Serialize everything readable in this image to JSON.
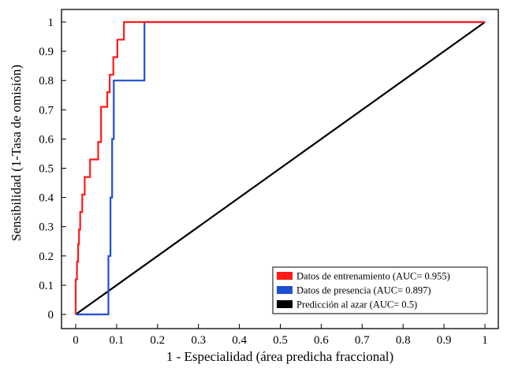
{
  "chart_data": {
    "type": "line",
    "title": "",
    "xlabel": "1 - Especialidad (área predicha fraccional)",
    "ylabel": "Sensibilidad (1-Tasa de omisión)",
    "xlim": [
      0,
      1
    ],
    "ylim": [
      0,
      1
    ],
    "xticks": [
      "0",
      "0.1",
      "0.2",
      "0.3",
      "0.4",
      "0.5",
      "0.6",
      "0.7",
      "0.8",
      "0.9",
      "1"
    ],
    "yticks": [
      "0",
      "0.1",
      "0.2",
      "0.3",
      "0.4",
      "0.5",
      "0.6",
      "0.7",
      "0.8",
      "0.9",
      "1"
    ],
    "grid": false,
    "legend_position": "bottom-right",
    "series": [
      {
        "name": "Datos de entrenamiento (AUC= 0.955)",
        "color": "#ff1a1a",
        "x": [
          0,
          0,
          0.003,
          0.003,
          0.006,
          0.006,
          0.008,
          0.008,
          0.011,
          0.011,
          0.016,
          0.016,
          0.022,
          0.022,
          0.035,
          0.035,
          0.055,
          0.055,
          0.062,
          0.062,
          0.077,
          0.077,
          0.083,
          0.083,
          0.092,
          0.092,
          0.102,
          0.102,
          0.118,
          0.118,
          1
        ],
        "y": [
          0,
          0.12,
          0.12,
          0.18,
          0.18,
          0.24,
          0.24,
          0.29,
          0.29,
          0.35,
          0.35,
          0.41,
          0.41,
          0.47,
          0.47,
          0.53,
          0.53,
          0.59,
          0.59,
          0.71,
          0.71,
          0.76,
          0.76,
          0.82,
          0.82,
          0.88,
          0.88,
          0.94,
          0.94,
          1,
          1
        ]
      },
      {
        "name": "Datos de presencia (AUC= 0.897)",
        "color": "#1f4fd1",
        "x": [
          0,
          0.08,
          0.08,
          0.085,
          0.085,
          0.089,
          0.089,
          0.093,
          0.093,
          0.168,
          0.168,
          1
        ],
        "y": [
          0,
          0,
          0.2,
          0.2,
          0.4,
          0.4,
          0.6,
          0.6,
          0.8,
          0.8,
          1,
          1
        ]
      },
      {
        "name": "Predicción al azar (AUC= 0.5)",
        "color": "#000000",
        "x": [
          0,
          1
        ],
        "y": [
          0,
          1
        ]
      }
    ],
    "legend": [
      {
        "label": "Datos de entrenamiento (AUC= 0.955)",
        "color": "#ff1a1a"
      },
      {
        "label": "Datos de presencia (AUC= 0.897)",
        "color": "#1f4fd1"
      },
      {
        "label": "Predicción al azar (AUC= 0.5)",
        "color": "#000000"
      }
    ]
  }
}
